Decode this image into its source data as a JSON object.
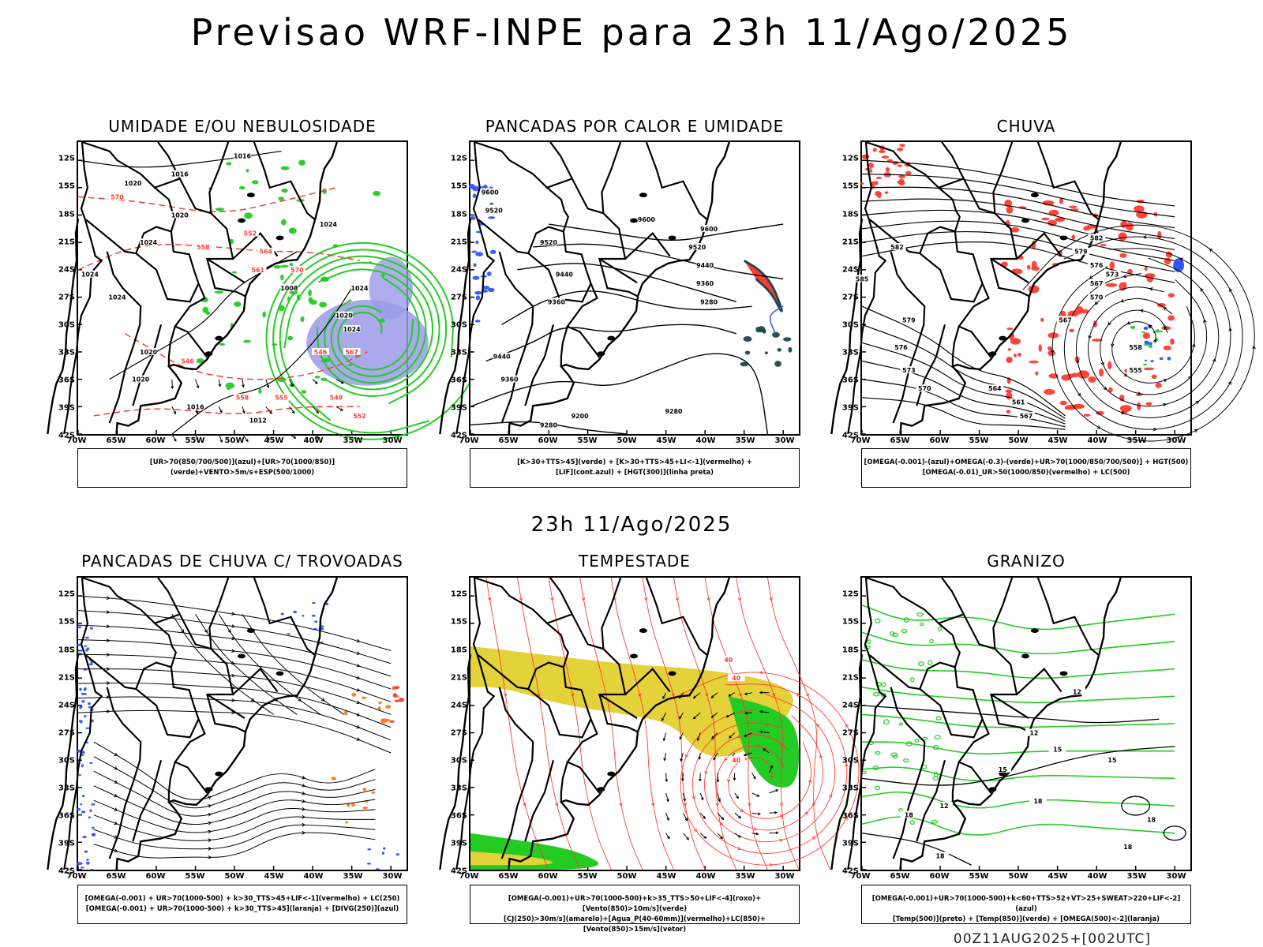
{
  "header": {
    "title": "Previsao WRF-INPE  para 23h 11/Ago/2025",
    "subtitle": "23h 11/Ago/2025",
    "footer": "00Z11AUG2025+[002UTC]"
  },
  "colors": {
    "green": "#22cc22",
    "red": "#ff3b2f",
    "blue": "#3355ff",
    "lavender": "#9a9ae8",
    "yellow": "#e3d23a",
    "orange": "#ff7a1a",
    "teal": "#1e4a4a"
  },
  "chart_data": {
    "type": "map",
    "lat_ticks": [
      "12S",
      "15S",
      "18S",
      "21S",
      "24S",
      "27S",
      "30S",
      "33S",
      "36S",
      "39S",
      "42S"
    ],
    "lon_ticks": [
      "70W",
      "65W",
      "60W",
      "55W",
      "50W",
      "45W",
      "40W",
      "35W",
      "30W"
    ],
    "lat_range": [
      -42,
      -10
    ],
    "lon_range": [
      -70,
      -28
    ],
    "panels": [
      {
        "title": "UMIDADE E/OU NEBULOSIDADE",
        "legend_lines": [
          "[UR>70(850/700/500)](azul)+[UR>70(1000/850)](verde)+VENTO>5m/s+ESP(500/1000)"
        ],
        "contour_labels": [
          "1016",
          "1016",
          "1020",
          "1020",
          "1024",
          "1024",
          "1024",
          "1020",
          "1016",
          "1012",
          "1008",
          "1024",
          "1024",
          "1020",
          "1024",
          "1020",
          "570",
          "564",
          "558",
          "552",
          "561",
          "570",
          "567",
          "546",
          "549",
          "552",
          "555",
          "558",
          "546"
        ]
      },
      {
        "title": "PANCADAS POR CALOR E UMIDADE",
        "legend_lines": [
          "[K>30+TTS>45](verde)  +  [K>30+TTS>45+LI<-1](vermelho)  +",
          "[LIF](cont.azul)  +  [HGT(300)](linha preta)"
        ],
        "contour_labels": [
          "9600",
          "9520",
          "9600",
          "9520",
          "9440",
          "9360",
          "9600",
          "9520",
          "9440",
          "9360",
          "9280",
          "9440",
          "9360",
          "9280",
          "9200",
          "9280"
        ]
      },
      {
        "title": "CHUVA",
        "legend_lines": [
          "[OMEGA(-0.001)-(azul)+OMEGA(-0.3)-(verde)+UR>70(1000/850/700/500)]  +  HGT(500)",
          "[OMEGA(-0.01)_UR>50(1000/850)(vermelho)  +  LC(500)"
        ],
        "contour_labels": [
          "582",
          "585",
          "579",
          "576",
          "573",
          "570",
          "567",
          "582",
          "579",
          "576",
          "573",
          "570",
          "567",
          "564",
          "561",
          "558",
          "555",
          "567"
        ]
      },
      {
        "title": "PANCADAS DE CHUVA C/ TROVOADAS",
        "legend_lines": [
          "[OMEGA(-0.001)  +  UR>70(1000-500)  +  k>30_TTS>45+LIF<-1](vermelho)  +  LC(250)",
          "[OMEGA(-0.001)  +  UR>70(1000-500)  +  k>30_TTS>45](laranja)  +  [DIVG(250)](azul)"
        ],
        "contour_labels": []
      },
      {
        "title": "TEMPESTADE",
        "legend_lines": [
          "[OMEGA(-0.001)+UR>70(1000-500)+k>35_TTS>50+LIF<-4](roxo)+[Vento(850)>10m/s](verde)",
          "[CJ(250)>30m/s](amarelo)+[Agua_P(40-60mm)](vermelho)+LC(850)+[Vento(850)>15m/s](vetor)"
        ],
        "contour_labels": [
          "40",
          "40",
          "40"
        ]
      },
      {
        "title": "GRANIZO",
        "legend_lines": [
          "[OMEGA(-0.001)+UR>70(1000-500)+k<60+TTS>52+VT>25+SWEAT>220+LIF<-2](azul)",
          "[Temp(500)](preto)  +  [Temp(850)](verde)  +  [OMEGA(500)<-2](laranja)"
        ],
        "contour_labels": [
          "12",
          "12",
          "15",
          "18",
          "18",
          "12",
          "15",
          "15",
          "18",
          "18",
          "18"
        ]
      }
    ]
  }
}
